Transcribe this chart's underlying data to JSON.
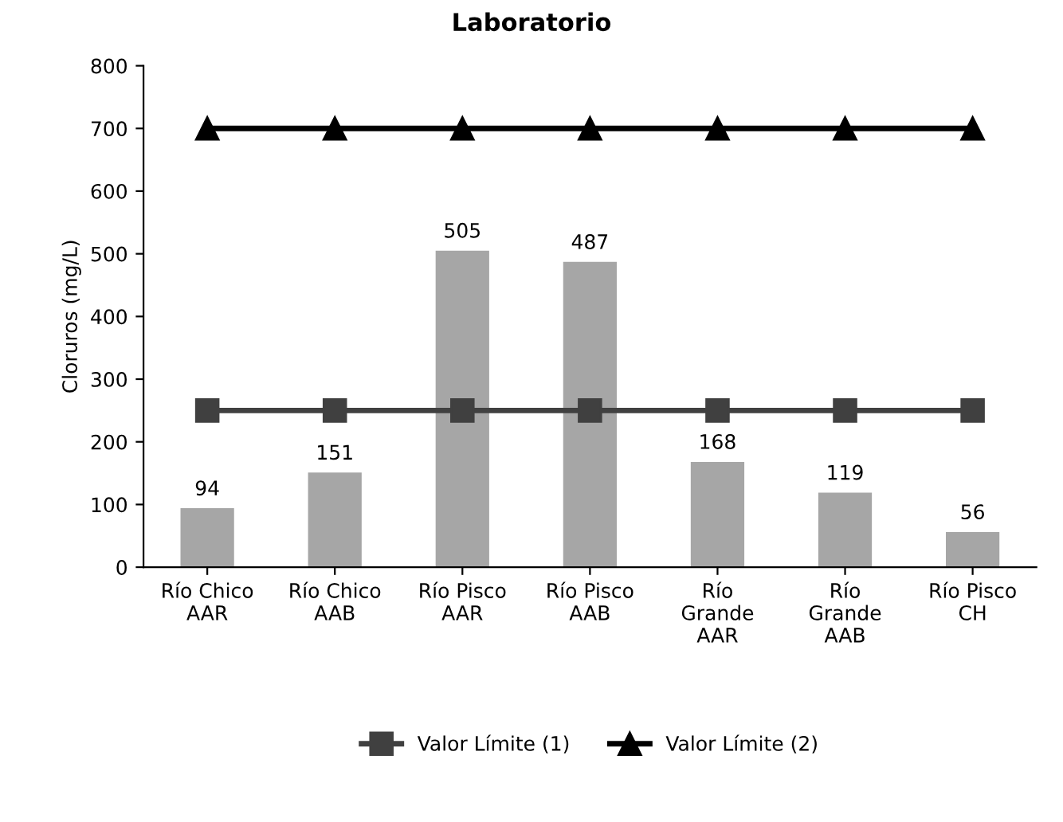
{
  "chart_data": {
    "type": "bar",
    "title": "Laboratorio",
    "ylabel": "Cloruros (mg/L)",
    "categories": [
      "Río Chico\nAAR",
      "Río Chico\nAAB",
      "Río Pisco\nAAR",
      "Río Pisco\nAAB",
      "Río\nGrande\nAAR",
      "Río\nGrande\nAAB",
      "Río Pisco\nCH"
    ],
    "series": [
      {
        "color": "#a6a6a6",
        "values": [
          94,
          151,
          505,
          487,
          168,
          119,
          56
        ],
        "data_labels": true
      },
      {
        "type": "line",
        "name": "Valor Límite (1)",
        "color": "#404040",
        "marker": "square",
        "values": [
          250,
          250,
          250,
          250,
          250,
          250,
          250
        ]
      },
      {
        "type": "line",
        "name": "Valor Límite (2)",
        "color": "#000000",
        "marker": "triangle",
        "values": [
          700,
          700,
          700,
          700,
          700,
          700,
          700
        ]
      }
    ],
    "ylim": [
      0,
      800
    ],
    "yticks": [
      0,
      100,
      200,
      300,
      400,
      500,
      600,
      700,
      800
    ],
    "grid": false,
    "legend": "bottom"
  }
}
